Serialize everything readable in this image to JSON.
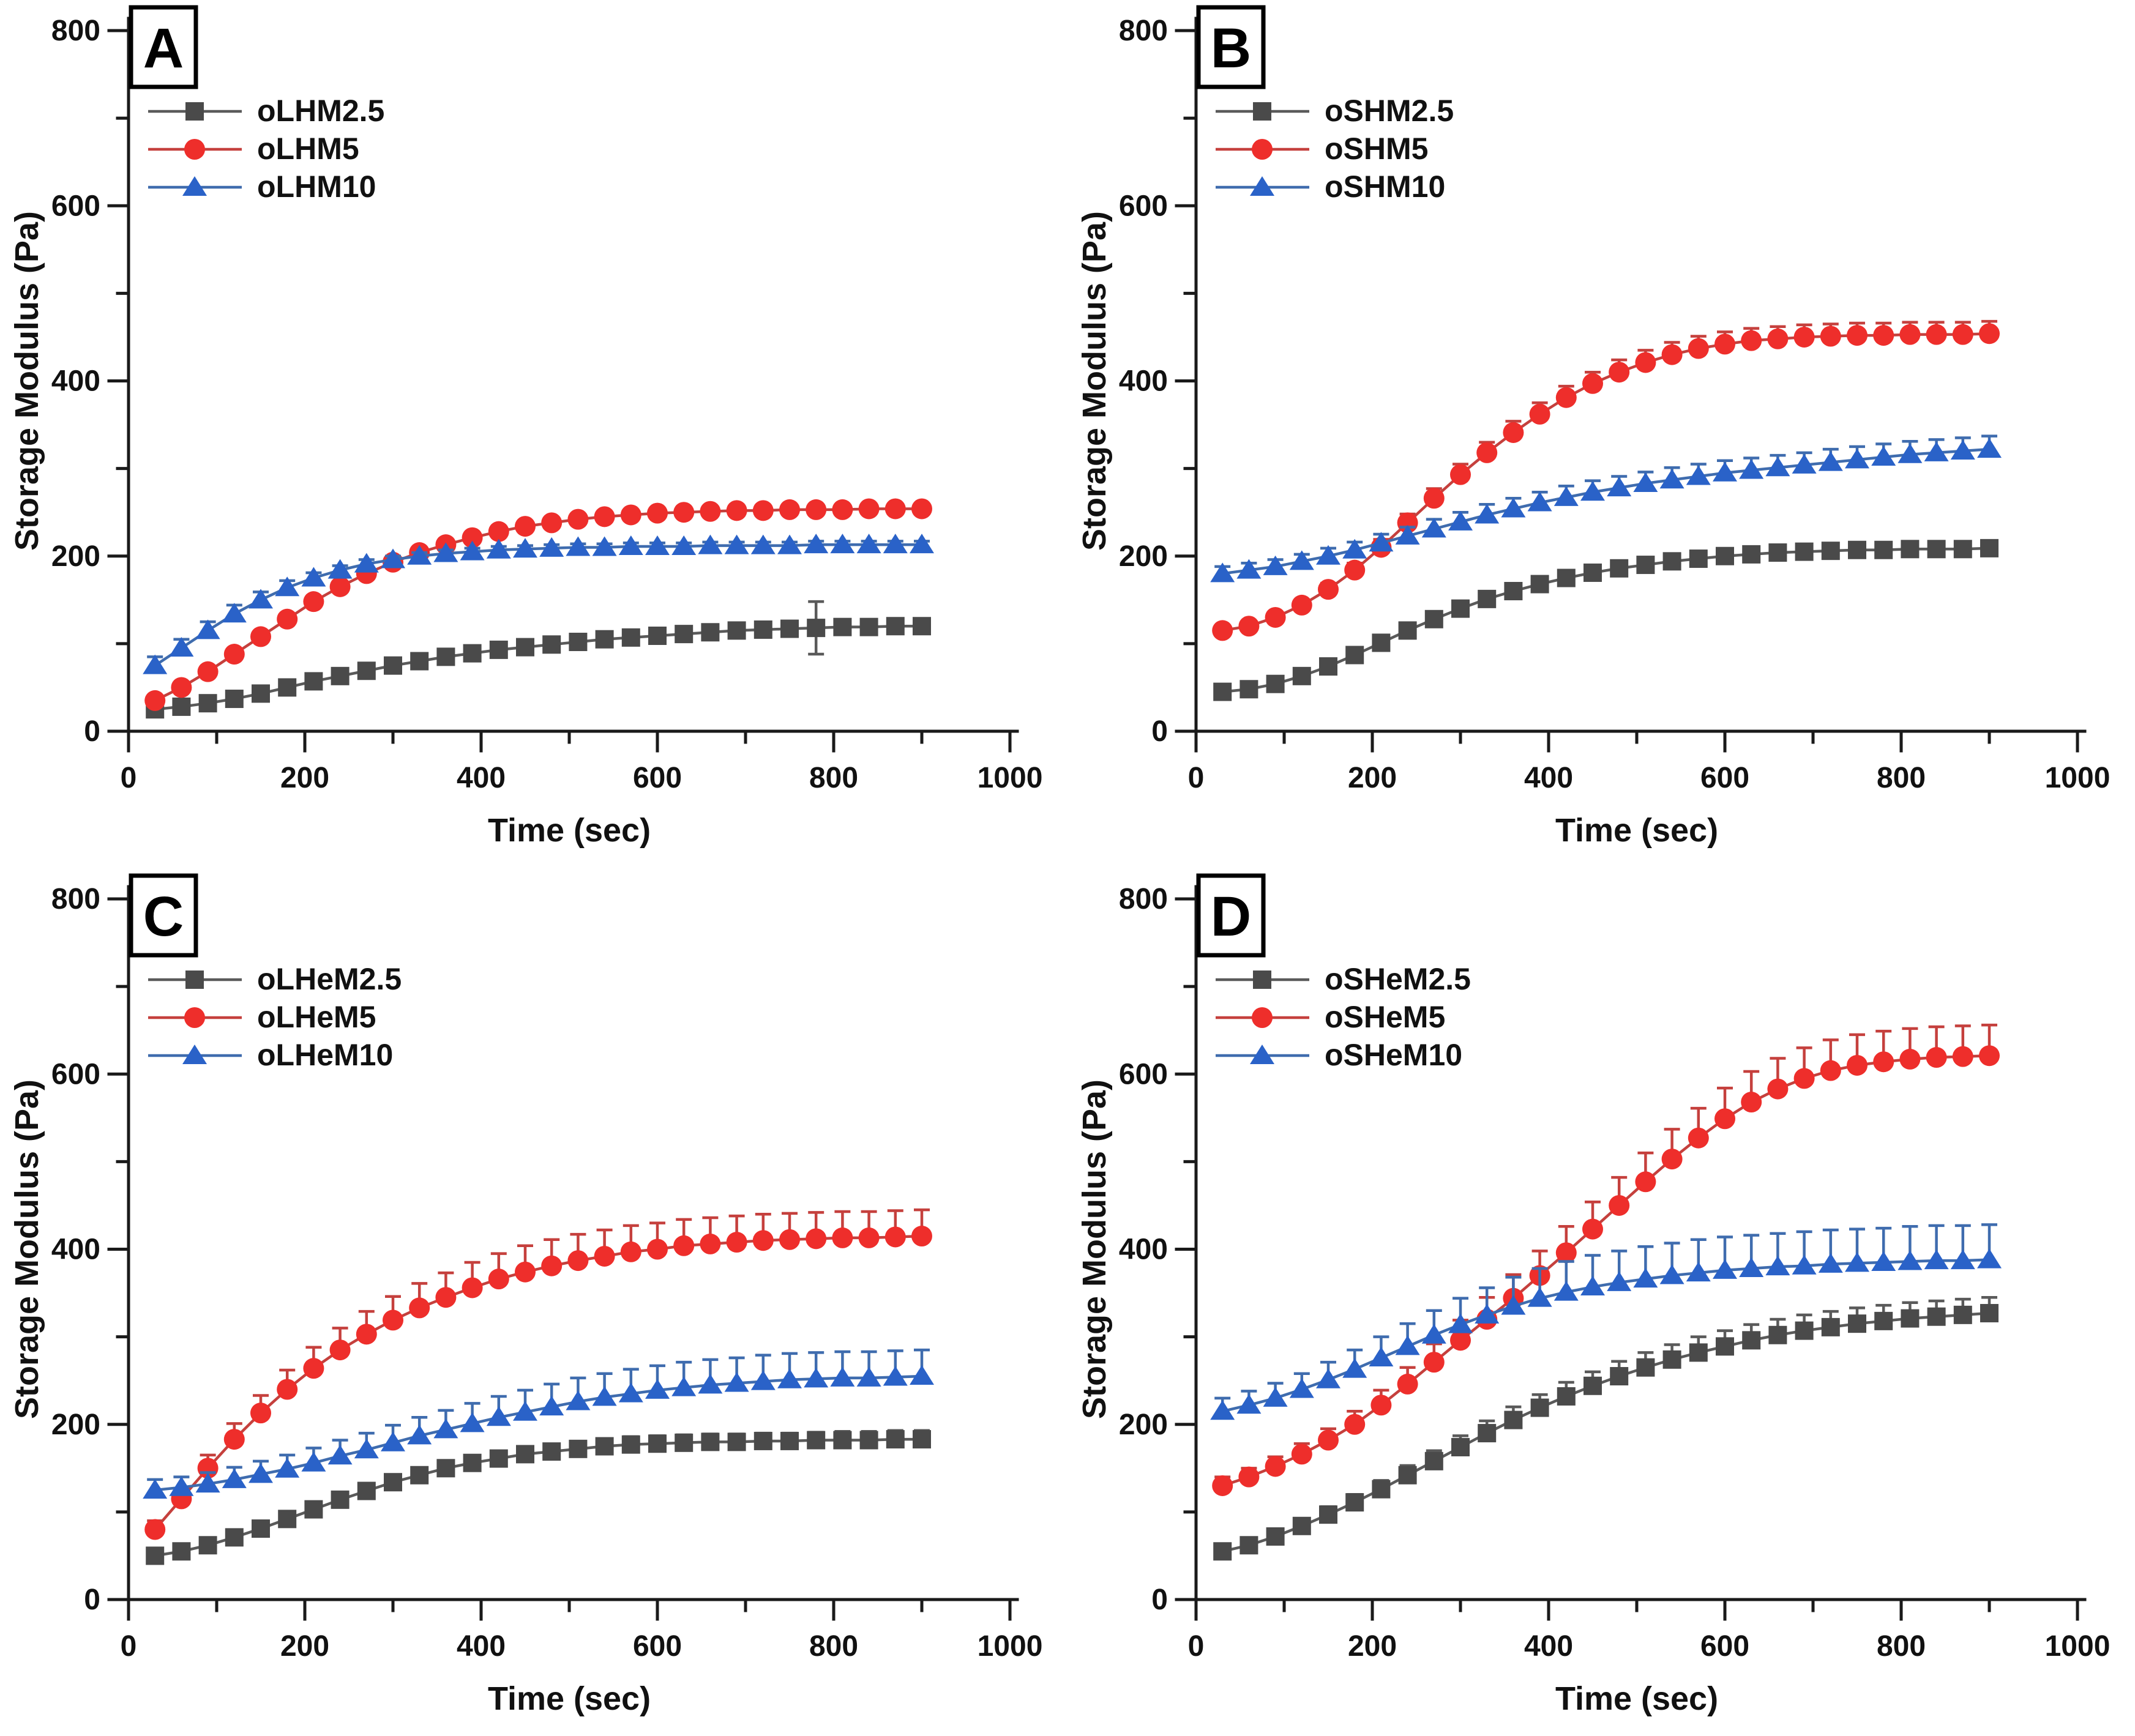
{
  "figure": {
    "title": "Storage Modulus vs Time, four panels",
    "background": "#ffffff",
    "axis_color": "#1a1a1a",
    "series_colors": {
      "gray": "#4a4a4a",
      "red": "#ee2e2b",
      "blue": "#2a62c8"
    }
  },
  "time_sec": [
    30,
    60,
    90,
    120,
    150,
    180,
    210,
    240,
    270,
    300,
    330,
    360,
    390,
    420,
    450,
    480,
    510,
    540,
    570,
    600,
    630,
    660,
    690,
    720,
    750,
    780,
    810,
    840,
    870,
    900
  ],
  "chart_data": [
    {
      "type": "line",
      "panel_label": "A",
      "xlabel": "Time (sec)",
      "ylabel": "Storage Modulus (Pa)",
      "xlim": [
        0,
        1000
      ],
      "ylim": [
        0,
        800
      ],
      "x_major_ticks": [
        0,
        200,
        400,
        600,
        800,
        1000
      ],
      "y_major_ticks": [
        0,
        200,
        400,
        600,
        800
      ],
      "x_minor_step": 100,
      "y_minor_step": 100,
      "legend_position": "upper-left",
      "grid": false,
      "series": [
        {
          "name": "oLHM2.5",
          "marker": "square",
          "color": "#4a4a4a",
          "line_color": "#5a5a5a",
          "err_mode": "both",
          "values": [
            25,
            28,
            32,
            37,
            43,
            50,
            57,
            63,
            69,
            75,
            80,
            85,
            89,
            93,
            96,
            99,
            102,
            105,
            107,
            109,
            111,
            113,
            115,
            116,
            117,
            118,
            119,
            119,
            120,
            120
          ],
          "err": [
            0,
            0,
            0,
            0,
            0,
            0,
            0,
            0,
            0,
            0,
            0,
            0,
            0,
            0,
            0,
            0,
            0,
            0,
            0,
            0,
            0,
            0,
            0,
            0,
            0,
            30,
            0,
            0,
            0,
            0
          ]
        },
        {
          "name": "oLHM5",
          "marker": "circle",
          "color": "#ee2e2b",
          "line_color": "#c5403d",
          "err_mode": "up",
          "values": [
            35,
            50,
            68,
            88,
            108,
            128,
            148,
            165,
            180,
            193,
            204,
            213,
            221,
            228,
            234,
            238,
            242,
            245,
            247,
            249,
            250,
            251,
            252,
            252,
            253,
            253,
            253,
            254,
            254,
            254
          ],
          "err": [
            5,
            5,
            5,
            5,
            5,
            5,
            5,
            5,
            5,
            5,
            5,
            5,
            5,
            5,
            5,
            5,
            5,
            5,
            5,
            5,
            5,
            5,
            5,
            5,
            5,
            5,
            5,
            5,
            5,
            5
          ]
        },
        {
          "name": "oLHM10",
          "marker": "triangle",
          "color": "#2a62c8",
          "line_color": "#3f6cae",
          "err_mode": "up",
          "values": [
            75,
            95,
            115,
            134,
            150,
            164,
            175,
            184,
            191,
            196,
            200,
            203,
            205,
            207,
            208,
            209,
            210,
            210,
            211,
            211,
            211,
            212,
            212,
            212,
            212,
            213,
            213,
            213,
            213,
            213
          ],
          "err": [
            10,
            10,
            10,
            10,
            9,
            8,
            6,
            5,
            5,
            4,
            4,
            4,
            4,
            4,
            4,
            4,
            4,
            4,
            4,
            4,
            4,
            4,
            4,
            4,
            4,
            4,
            4,
            4,
            4,
            4
          ]
        }
      ]
    },
    {
      "type": "line",
      "panel_label": "B",
      "xlabel": "Time (sec)",
      "ylabel": "Storage Modulus (Pa)",
      "xlim": [
        0,
        1000
      ],
      "ylim": [
        0,
        800
      ],
      "x_major_ticks": [
        0,
        200,
        400,
        600,
        800,
        1000
      ],
      "y_major_ticks": [
        0,
        200,
        400,
        600,
        800
      ],
      "x_minor_step": 100,
      "y_minor_step": 100,
      "legend_position": "upper-left",
      "grid": false,
      "series": [
        {
          "name": "oSHM2.5",
          "marker": "square",
          "color": "#4a4a4a",
          "line_color": "#5a5a5a",
          "err_mode": "up",
          "values": [
            45,
            48,
            54,
            63,
            74,
            87,
            101,
            115,
            128,
            140,
            151,
            160,
            168,
            175,
            181,
            186,
            190,
            194,
            197,
            200,
            202,
            204,
            205,
            206,
            207,
            207,
            208,
            208,
            208,
            209
          ],
          "err": [
            5,
            5,
            5,
            5,
            5,
            5,
            5,
            5,
            5,
            5,
            5,
            5,
            5,
            5,
            5,
            5,
            5,
            5,
            5,
            5,
            5,
            5,
            6,
            6,
            6,
            6,
            7,
            7,
            7,
            7
          ]
        },
        {
          "name": "oSHM5",
          "marker": "circle",
          "color": "#ee2e2b",
          "line_color": "#c5403d",
          "err_mode": "up",
          "values": [
            115,
            120,
            130,
            144,
            162,
            184,
            210,
            238,
            266,
            293,
            318,
            341,
            362,
            381,
            397,
            410,
            421,
            430,
            437,
            442,
            446,
            448,
            450,
            451,
            452,
            452,
            453,
            453,
            453,
            454
          ],
          "err": [
            5,
            5,
            5,
            6,
            7,
            8,
            9,
            10,
            11,
            12,
            12,
            13,
            13,
            13,
            13,
            14,
            14,
            14,
            14,
            14,
            14,
            14,
            14,
            14,
            14,
            14,
            14,
            14,
            14,
            14
          ]
        },
        {
          "name": "oSHM10",
          "marker": "triangle",
          "color": "#2a62c8",
          "line_color": "#3f6cae",
          "err_mode": "up",
          "values": [
            180,
            184,
            188,
            194,
            200,
            207,
            215,
            223,
            231,
            239,
            247,
            254,
            261,
            267,
            273,
            278,
            283,
            287,
            291,
            295,
            298,
            301,
            304,
            307,
            310,
            313,
            316,
            318,
            320,
            322
          ],
          "err": [
            8,
            8,
            8,
            8,
            9,
            9,
            10,
            10,
            11,
            11,
            12,
            12,
            12,
            13,
            13,
            13,
            13,
            14,
            14,
            14,
            14,
            14,
            14,
            15,
            15,
            15,
            15,
            15,
            15,
            15
          ]
        }
      ]
    },
    {
      "type": "line",
      "panel_label": "C",
      "xlabel": "Time (sec)",
      "ylabel": "Storage Modulus (Pa)",
      "xlim": [
        0,
        1000
      ],
      "ylim": [
        0,
        800
      ],
      "x_major_ticks": [
        0,
        200,
        400,
        600,
        800,
        1000
      ],
      "y_major_ticks": [
        0,
        200,
        400,
        600,
        800
      ],
      "x_minor_step": 100,
      "y_minor_step": 100,
      "legend_position": "upper-left",
      "grid": false,
      "series": [
        {
          "name": "oLHeM2.5",
          "marker": "square",
          "color": "#4a4a4a",
          "line_color": "#5a5a5a",
          "err_mode": "up",
          "values": [
            50,
            55,
            62,
            71,
            81,
            92,
            103,
            114,
            124,
            134,
            142,
            150,
            156,
            161,
            166,
            169,
            172,
            175,
            177,
            178,
            179,
            180,
            180,
            181,
            181,
            182,
            182,
            182,
            183,
            183
          ],
          "err": [
            5,
            5,
            5,
            5,
            5,
            6,
            6,
            6,
            7,
            7,
            7,
            7,
            8,
            8,
            8,
            8,
            8,
            8,
            9,
            9,
            9,
            9,
            9,
            9,
            9,
            9,
            10,
            10,
            10,
            10
          ]
        },
        {
          "name": "oLHeM5",
          "marker": "circle",
          "color": "#ee2e2b",
          "line_color": "#c5403d",
          "err_mode": "up",
          "values": [
            80,
            115,
            150,
            183,
            213,
            240,
            264,
            285,
            303,
            319,
            333,
            345,
            356,
            366,
            374,
            381,
            387,
            392,
            397,
            400,
            404,
            406,
            408,
            410,
            411,
            412,
            413,
            413,
            414,
            415
          ],
          "err": [
            10,
            12,
            15,
            18,
            20,
            22,
            24,
            25,
            26,
            27,
            28,
            28,
            29,
            29,
            30,
            30,
            30,
            30,
            30,
            30,
            30,
            30,
            30,
            30,
            30,
            30,
            30,
            30,
            30,
            30
          ]
        },
        {
          "name": "oLHeM10",
          "marker": "triangle",
          "color": "#2a62c8",
          "line_color": "#3f6cae",
          "err_mode": "up",
          "values": [
            125,
            128,
            132,
            137,
            143,
            149,
            156,
            164,
            171,
            179,
            187,
            194,
            201,
            208,
            214,
            220,
            226,
            231,
            235,
            239,
            242,
            245,
            247,
            249,
            251,
            252,
            253,
            253,
            254,
            255
          ],
          "err": [
            12,
            12,
            13,
            14,
            15,
            16,
            17,
            18,
            19,
            20,
            21,
            22,
            23,
            24,
            25,
            26,
            27,
            27,
            28,
            28,
            29,
            29,
            29,
            30,
            30,
            30,
            30,
            30,
            30,
            30
          ]
        }
      ]
    },
    {
      "type": "line",
      "panel_label": "D",
      "xlabel": "Time (sec)",
      "ylabel": "Storage Modulus (Pa)",
      "xlim": [
        0,
        1000
      ],
      "ylim": [
        0,
        800
      ],
      "x_major_ticks": [
        0,
        200,
        400,
        600,
        800,
        1000
      ],
      "y_major_ticks": [
        0,
        200,
        400,
        600,
        800
      ],
      "x_minor_step": 100,
      "y_minor_step": 100,
      "legend_position": "upper-left",
      "grid": false,
      "series": [
        {
          "name": "oSHeM2.5",
          "marker": "square",
          "color": "#4a4a4a",
          "line_color": "#5a5a5a",
          "err_mode": "up",
          "values": [
            55,
            62,
            72,
            84,
            97,
            111,
            126,
            142,
            158,
            174,
            190,
            205,
            219,
            232,
            244,
            255,
            265,
            274,
            282,
            289,
            296,
            302,
            307,
            311,
            315,
            318,
            321,
            323,
            325,
            327
          ],
          "err": [
            8,
            8,
            8,
            8,
            9,
            9,
            10,
            11,
            12,
            13,
            14,
            15,
            15,
            16,
            16,
            17,
            17,
            17,
            18,
            18,
            18,
            18,
            18,
            18,
            18,
            18,
            18,
            18,
            18,
            18
          ]
        },
        {
          "name": "oSHeM5",
          "marker": "circle",
          "color": "#ee2e2b",
          "line_color": "#c5403d",
          "err_mode": "up",
          "values": [
            130,
            140,
            152,
            166,
            182,
            200,
            222,
            246,
            271,
            296,
            320,
            344,
            370,
            396,
            423,
            450,
            477,
            503,
            527,
            549,
            568,
            583,
            595,
            604,
            610,
            614,
            617,
            619,
            620,
            621
          ],
          "err": [
            10,
            10,
            11,
            12,
            13,
            15,
            17,
            19,
            21,
            23,
            25,
            27,
            28,
            30,
            31,
            32,
            33,
            34,
            34,
            35,
            35,
            35,
            35,
            35,
            35,
            35,
            35,
            35,
            35,
            35
          ]
        },
        {
          "name": "oSHeM10",
          "marker": "triangle",
          "color": "#2a62c8",
          "line_color": "#3f6cae",
          "err_mode": "up",
          "values": [
            215,
            222,
            230,
            240,
            251,
            263,
            276,
            289,
            302,
            314,
            325,
            335,
            344,
            351,
            357,
            362,
            366,
            370,
            373,
            376,
            378,
            380,
            381,
            383,
            384,
            385,
            386,
            387,
            387,
            388
          ],
          "err": [
            15,
            16,
            17,
            18,
            20,
            22,
            24,
            26,
            28,
            30,
            31,
            33,
            34,
            35,
            36,
            36,
            37,
            37,
            38,
            38,
            38,
            38,
            39,
            39,
            39,
            39,
            40,
            40,
            40,
            40
          ]
        }
      ]
    }
  ]
}
